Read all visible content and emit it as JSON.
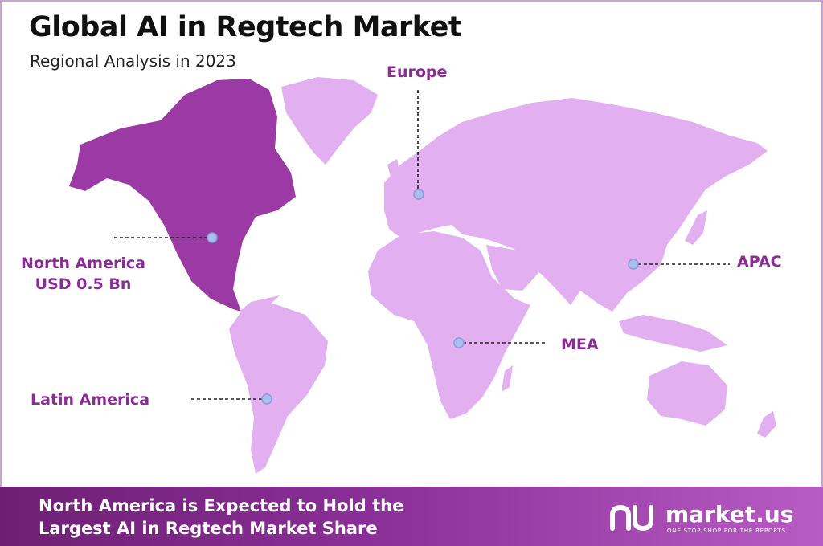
{
  "title": "Global AI in Regtech Market",
  "subtitle": "Regional Analysis in 2023",
  "regions": {
    "north_america": {
      "name": "North America",
      "value": "USD 0.5 Bn",
      "highlight_color": "#9b3aa5"
    },
    "europe": {
      "name": "Europe"
    },
    "apac": {
      "name": "APAC"
    },
    "mea": {
      "name": "MEA"
    },
    "latin_america": {
      "name": "Latin America"
    }
  },
  "colors": {
    "land": "#e2aff0",
    "highlight": "#9b3aa5",
    "label": "#8b2c96",
    "marker": "#a9c0ee",
    "footer_start": "#6e1f74",
    "footer_end": "#b85bc4"
  },
  "footer": {
    "line1": "North America is Expected to Hold the",
    "line2": "Largest AI in Regtech Market Share"
  },
  "logo": {
    "brand": "market.us",
    "tagline": "ONE STOP SHOP FOR THE REPORTS",
    "icon": "market-us-logo-icon"
  }
}
